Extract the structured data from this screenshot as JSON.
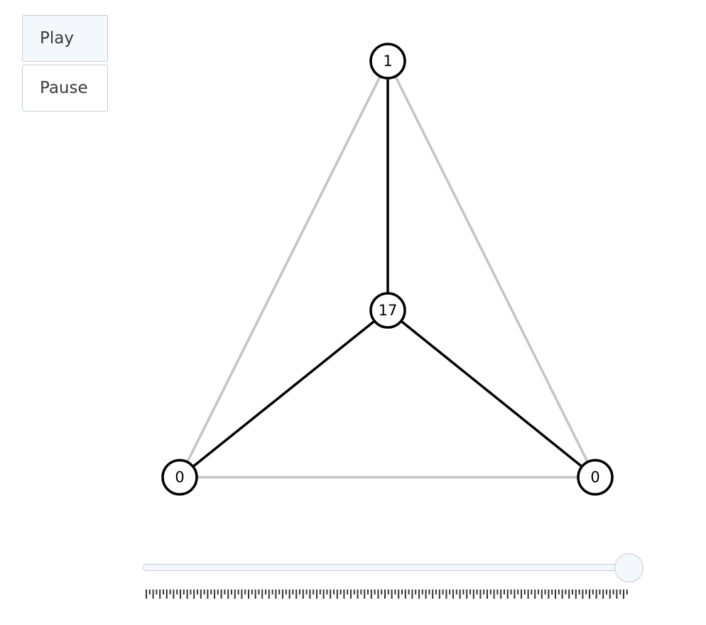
{
  "controls": {
    "play_label": "Play",
    "pause_label": "Pause"
  },
  "graph": {
    "nodes": [
      {
        "id": "top",
        "label": "1"
      },
      {
        "id": "center",
        "label": "17"
      },
      {
        "id": "bottom-left",
        "label": "0"
      },
      {
        "id": "bottom-right",
        "label": "0"
      }
    ]
  },
  "slider": {
    "value_fraction": 1.0
  },
  "colors": {
    "button_border": "#c5cbd6",
    "button_active_bg": "#f4f7fc",
    "edge_inactive": "#c4c4c4",
    "edge_active": "#000000"
  }
}
